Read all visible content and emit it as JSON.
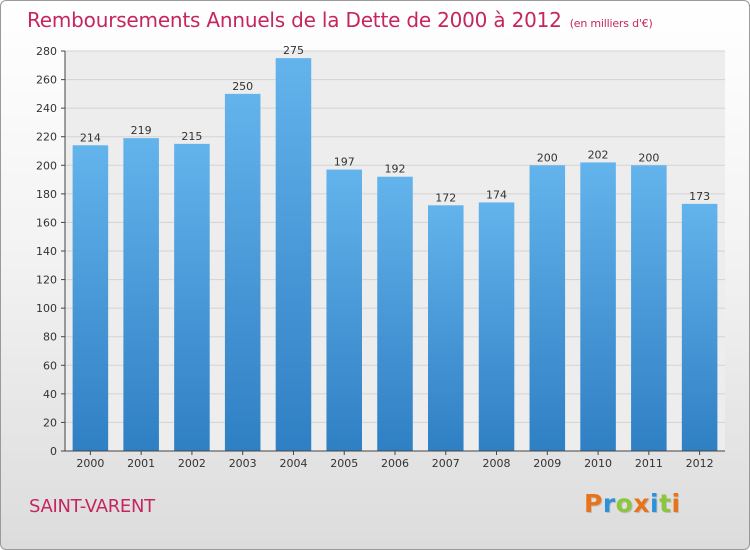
{
  "chart_data": {
    "type": "bar",
    "title": "Remboursements Annuels de la Dette de 2000 à 2012",
    "subtitle": "(en milliers d'€)",
    "xlabel": "",
    "ylabel": "",
    "categories": [
      "2000",
      "2001",
      "2002",
      "2003",
      "2004",
      "2005",
      "2006",
      "2007",
      "2008",
      "2009",
      "2010",
      "2011",
      "2012"
    ],
    "values": [
      214,
      219,
      215,
      250,
      275,
      197,
      192,
      172,
      174,
      200,
      202,
      200,
      173
    ],
    "ylim": [
      0,
      280
    ],
    "yticks": [
      0,
      20,
      40,
      60,
      80,
      100,
      120,
      140,
      160,
      180,
      200,
      220,
      240,
      260,
      280
    ],
    "grid": true,
    "bar_color": "#4a9fe0"
  },
  "footer": {
    "commune": "SAINT-VARENT",
    "logo": {
      "letters": [
        "P",
        "r",
        "o",
        "x",
        "i",
        "t",
        "i"
      ],
      "colors": [
        "#e8731a",
        "#2f8fd8",
        "#8cc63f",
        "#e8731a",
        "#2f8fd8",
        "#8cc63f",
        "#e8731a"
      ]
    }
  }
}
